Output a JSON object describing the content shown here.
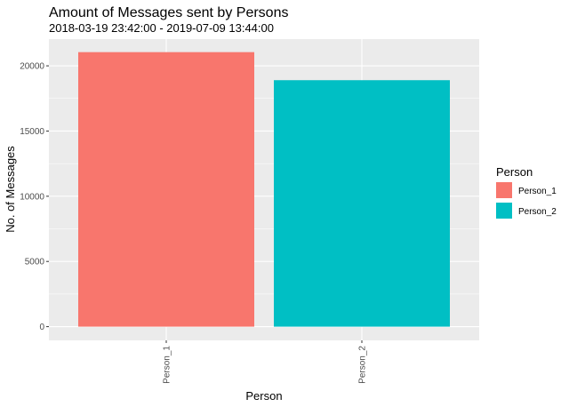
{
  "chart_data": {
    "type": "bar",
    "title": "Amount of Messages sent by Persons",
    "subtitle": "2018-03-19 23:42:00  -  2019-07-09 13:44:00",
    "xlabel": "Person",
    "ylabel": "No. of Messages",
    "categories": [
      "Person_1",
      "Person_2"
    ],
    "values": [
      21050,
      18900
    ],
    "ylim": [
      -1050,
      22050
    ],
    "yticks": [
      0,
      5000,
      10000,
      15000,
      20000
    ],
    "ytick_labels": [
      "0",
      "5000",
      "10000",
      "15000",
      "20000"
    ],
    "grid": true,
    "legend": {
      "title": "Person",
      "position": "right",
      "entries": [
        "Person_1",
        "Person_2"
      ]
    },
    "colors": [
      "#F8766D",
      "#00BFC4"
    ],
    "panel_background": "#EBEBEB",
    "gridline_color": "#FFFFFF"
  }
}
